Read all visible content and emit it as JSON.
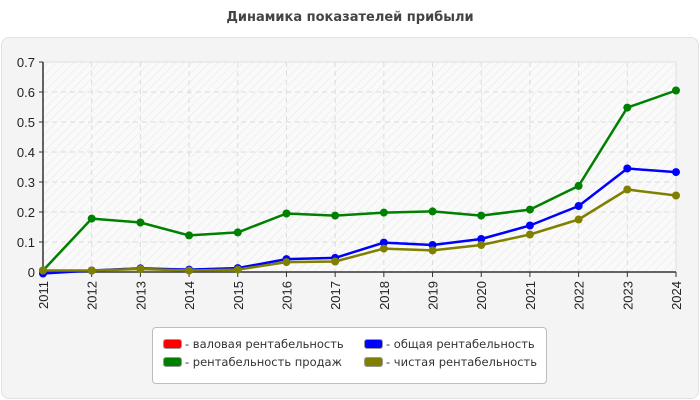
{
  "chart_data": {
    "type": "line",
    "title": "Динамика показателей прибыли",
    "xlabel": "",
    "ylabel": "",
    "ylim": [
      0,
      0.7
    ],
    "yticks": [
      "0",
      "0.1",
      "0.2",
      "0.3",
      "0.4",
      "0.5",
      "0.6",
      "0.7"
    ],
    "grid": true,
    "legend_position": "bottom",
    "categories": [
      "2011",
      "2012",
      "2013",
      "2014",
      "2015",
      "2016",
      "2017",
      "2018",
      "2019",
      "2020",
      "2021",
      "2022",
      "2023",
      "2024"
    ],
    "series": [
      {
        "name": "валовая рентабельность",
        "color": "#ff0000",
        "values": []
      },
      {
        "name": "общая рентабельность",
        "color": "#0000ff",
        "values": [
          -0.005,
          0.005,
          0.012,
          0.008,
          0.013,
          0.043,
          0.047,
          0.098,
          0.09,
          0.11,
          0.155,
          0.22,
          0.345,
          0.333
        ]
      },
      {
        "name": "рентабельность продаж",
        "color": "#008000",
        "values": [
          0.005,
          0.178,
          0.165,
          0.122,
          0.132,
          0.195,
          0.188,
          0.198,
          0.202,
          0.188,
          0.208,
          0.287,
          0.548,
          0.605
        ]
      },
      {
        "name": "чистая рентабельность",
        "color": "#808000",
        "values": [
          0.005,
          0.005,
          0.01,
          0.005,
          0.008,
          0.033,
          0.035,
          0.078,
          0.072,
          0.09,
          0.125,
          0.175,
          0.275,
          0.255
        ]
      }
    ]
  },
  "legend": [
    {
      "label": "- валовая рентабельность",
      "color": "#ff0000"
    },
    {
      "label": "- общая рентабельность",
      "color": "#0000ff"
    },
    {
      "label": "- рентабельность продаж",
      "color": "#008000"
    },
    {
      "label": "- чистая рентабельность",
      "color": "#808000"
    }
  ]
}
